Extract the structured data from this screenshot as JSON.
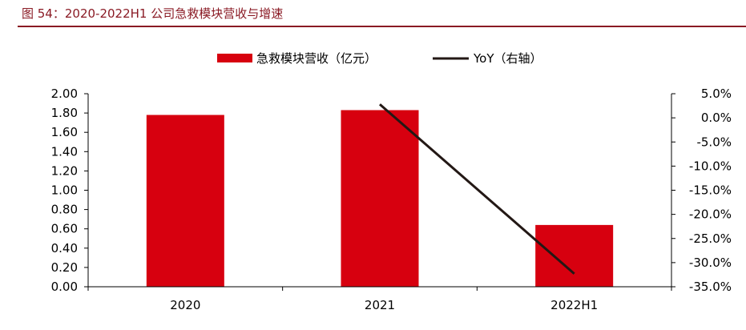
{
  "figure_title": "图 54：2020-2022H1 公司急救模块营收与增速",
  "colors": {
    "bar": "#d7000f",
    "line": "#231815",
    "title": "#8a1a24",
    "axis": "#000000"
  },
  "chart_data": {
    "type": "bar",
    "categories": [
      "2020",
      "2021",
      "2022H1"
    ],
    "series": [
      {
        "name": "急救模块营收（亿元）",
        "type": "bar",
        "axis": "left",
        "values": [
          1.78,
          1.83,
          0.64
        ]
      },
      {
        "name": "YoY（右轴）",
        "type": "line",
        "axis": "right",
        "values": [
          null,
          2.8,
          -32.3
        ]
      }
    ],
    "y_left": {
      "min": 0,
      "max": 2.0,
      "ticks": [
        0,
        0.2,
        0.4,
        0.6,
        0.8,
        1.0,
        1.2,
        1.4,
        1.6,
        1.8,
        2.0
      ],
      "tick_labels": [
        "0.00",
        "0.20",
        "0.40",
        "0.60",
        "0.80",
        "1.00",
        "1.20",
        "1.40",
        "1.60",
        "1.80",
        "2.00"
      ]
    },
    "y_right": {
      "min": -35,
      "max": 5,
      "ticks": [
        -35,
        -30,
        -25,
        -20,
        -15,
        -10,
        -5,
        0,
        5
      ],
      "tick_labels": [
        "-35.0%",
        "-30.0%",
        "-25.0%",
        "-20.0%",
        "-15.0%",
        "-10.0%",
        "-5.0%",
        "0.0%",
        "5.0%"
      ]
    },
    "legend": {
      "position": "top-center",
      "items": [
        "急救模块营收（亿元）",
        "YoY（右轴）"
      ]
    },
    "grid": false
  }
}
